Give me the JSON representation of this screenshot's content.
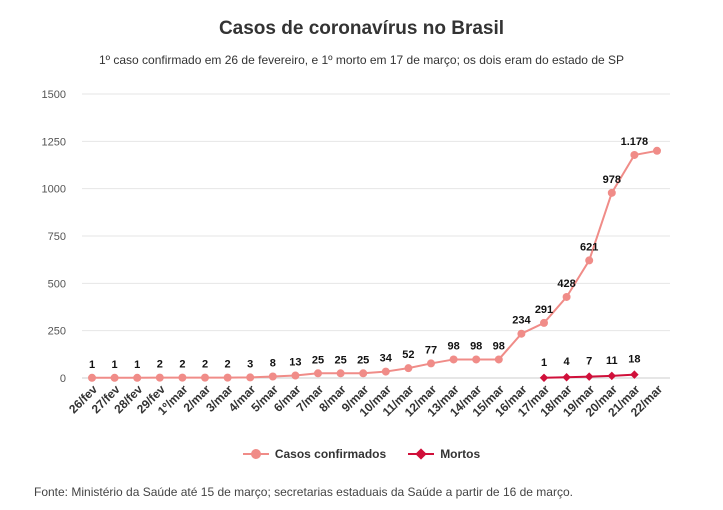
{
  "colors": {
    "confirmed": "#f08c88",
    "deaths": "#d0103a",
    "grid": "#e6e6e6",
    "axis_text": "#555555",
    "label_text": "#111111"
  },
  "source": "Fonte: Ministério da Saúde até 15 de março; secretarias estaduais da Saúde a partir de 16 de março.",
  "chart_data": {
    "type": "line",
    "title": "Casos de coronavírus no Brasil",
    "subtitle": "1º caso confirmado em 26 de fevereiro, e 1º morto em 17 de março; os dois eram do estado de SP",
    "xlabel": "",
    "ylabel": "",
    "ylim": [
      0,
      1500
    ],
    "yticks": [
      "0",
      "250",
      "500",
      "750",
      "1000",
      "1250",
      "1500"
    ],
    "grid": true,
    "legend_position": "bottom",
    "categories": [
      "26/fev",
      "27/fev",
      "28/fev",
      "29/fev",
      "1º/mar",
      "2/mar",
      "3/mar",
      "4/mar",
      "5/mar",
      "6/mar",
      "7/mar",
      "8/mar",
      "9/mar",
      "10/mar",
      "11/mar",
      "12/mar",
      "13/mar",
      "14/mar",
      "15/mar",
      "16/mar",
      "17/mar",
      "18/mar",
      "19/mar",
      "20/mar",
      "21/mar",
      "22/mar"
    ],
    "series": [
      {
        "name": "Casos confirmados",
        "values": [
          1,
          1,
          1,
          2,
          2,
          2,
          2,
          3,
          8,
          13,
          25,
          25,
          25,
          34,
          52,
          77,
          98,
          98,
          98,
          234,
          291,
          428,
          621,
          978,
          1178,
          1200
        ],
        "labels": [
          "1",
          "1",
          "1",
          "2",
          "2",
          "2",
          "2",
          "3",
          "8",
          "13",
          "25",
          "25",
          "25",
          "34",
          "52",
          "77",
          "98",
          "98",
          "98",
          "234",
          "291",
          "428",
          "621",
          "978",
          "1.178",
          ""
        ]
      },
      {
        "name": "Mortos",
        "values": [
          null,
          null,
          null,
          null,
          null,
          null,
          null,
          null,
          null,
          null,
          null,
          null,
          null,
          null,
          null,
          null,
          null,
          null,
          null,
          null,
          1,
          4,
          7,
          11,
          18,
          null
        ],
        "labels": [
          "",
          "",
          "",
          "",
          "",
          "",
          "",
          "",
          "",
          "",
          "",
          "",
          "",
          "",
          "",
          "",
          "",
          "",
          "",
          "",
          "1",
          "4",
          "7",
          "11",
          "18",
          ""
        ]
      }
    ]
  }
}
